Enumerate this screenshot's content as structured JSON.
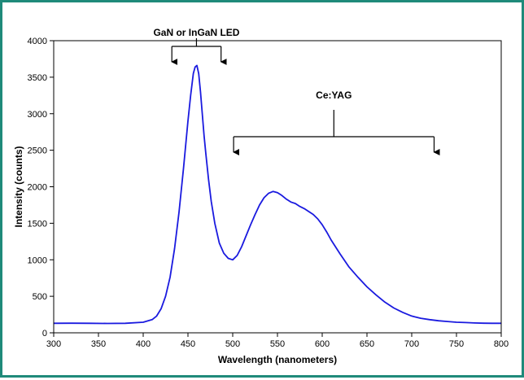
{
  "chart_data": {
    "type": "line",
    "title": "",
    "xlabel": "Wavelength (nanometers)",
    "ylabel": "Intensity (counts)",
    "xlim": [
      300,
      800
    ],
    "ylim": [
      0,
      4000
    ],
    "xticks": [
      300,
      350,
      400,
      450,
      500,
      550,
      600,
      650,
      700,
      750,
      800
    ],
    "yticks": [
      0,
      500,
      1000,
      1500,
      2000,
      2500,
      3000,
      3500,
      4000
    ],
    "grid": false,
    "legend": "none",
    "line_color": "#1a1adf",
    "series": [
      {
        "x": [
          300,
          320,
          340,
          360,
          380,
          400,
          410,
          415,
          420,
          425,
          430,
          435,
          440,
          445,
          450,
          453,
          456,
          458,
          460,
          462,
          464,
          466,
          468,
          470,
          473,
          476,
          480,
          485,
          490,
          495,
          500,
          505,
          510,
          515,
          520,
          525,
          530,
          535,
          540,
          545,
          550,
          555,
          560,
          565,
          570,
          575,
          580,
          585,
          590,
          595,
          600,
          605,
          610,
          620,
          630,
          640,
          650,
          660,
          670,
          680,
          690,
          700,
          710,
          720,
          730,
          740,
          750,
          760,
          770,
          780,
          790,
          800
        ],
        "values": [
          130,
          132,
          130,
          128,
          130,
          145,
          180,
          230,
          330,
          500,
          760,
          1150,
          1650,
          2250,
          2900,
          3250,
          3550,
          3640,
          3660,
          3550,
          3300,
          3000,
          2700,
          2450,
          2100,
          1800,
          1500,
          1230,
          1090,
          1020,
          1000,
          1060,
          1180,
          1330,
          1480,
          1620,
          1750,
          1850,
          1910,
          1935,
          1920,
          1880,
          1830,
          1790,
          1770,
          1730,
          1700,
          1660,
          1620,
          1560,
          1480,
          1380,
          1270,
          1080,
          900,
          760,
          630,
          520,
          420,
          340,
          280,
          230,
          200,
          180,
          165,
          155,
          145,
          140,
          135,
          132,
          130,
          130
        ]
      }
    ],
    "annotations": [
      {
        "label": "GaN or InGaN  LED",
        "x_start": 432,
        "x_end": 487
      },
      {
        "label": "Ce:YAG",
        "x_start": 501,
        "x_end": 725
      }
    ]
  }
}
